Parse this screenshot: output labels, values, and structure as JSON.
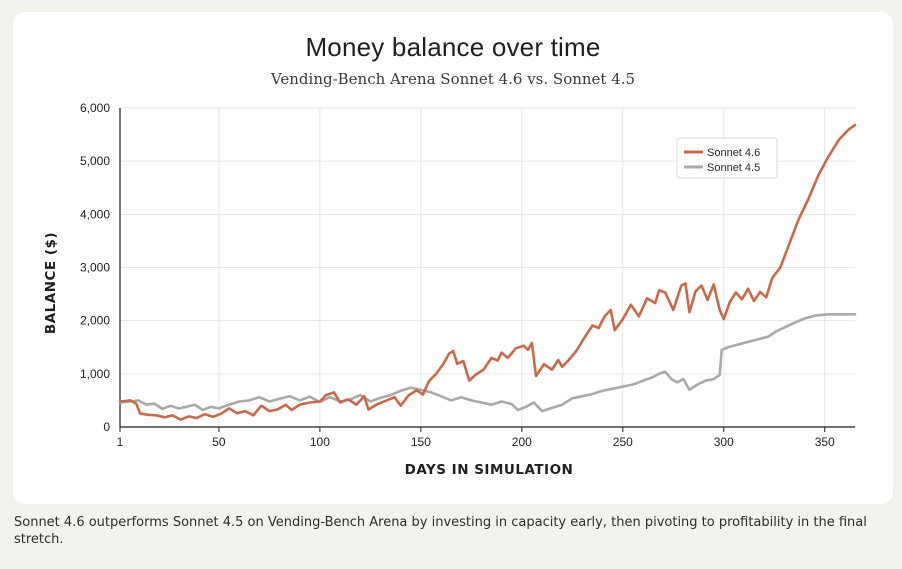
{
  "chart_data": {
    "type": "line",
    "title": "Money balance over time",
    "subtitle": "Vending-Bench Arena Sonnet 4.6 vs. Sonnet 4.5",
    "xlabel": "DAYS IN SIMULATION",
    "ylabel": "BALANCE ($)",
    "xlim": [
      1,
      365
    ],
    "ylim": [
      0,
      6000
    ],
    "xticks": [
      1,
      50,
      100,
      150,
      200,
      250,
      300,
      350
    ],
    "yticks": [
      0,
      1000,
      2000,
      3000,
      4000,
      5000,
      6000
    ],
    "ytick_labels": [
      "0",
      "1,000",
      "2,000",
      "3,000",
      "4,000",
      "5,000",
      "6,000"
    ],
    "grid": true,
    "legend_position": "top-right",
    "series": [
      {
        "name": "Sonnet 4.6",
        "color": "#c9694a",
        "points": [
          [
            1,
            480
          ],
          [
            6,
            500
          ],
          [
            9,
            440
          ],
          [
            11,
            250
          ],
          [
            15,
            230
          ],
          [
            19,
            220
          ],
          [
            23,
            180
          ],
          [
            27,
            220
          ],
          [
            31,
            140
          ],
          [
            35,
            200
          ],
          [
            39,
            170
          ],
          [
            43,
            240
          ],
          [
            47,
            190
          ],
          [
            51,
            250
          ],
          [
            55,
            350
          ],
          [
            59,
            260
          ],
          [
            63,
            300
          ],
          [
            67,
            220
          ],
          [
            71,
            400
          ],
          [
            75,
            300
          ],
          [
            79,
            330
          ],
          [
            83,
            420
          ],
          [
            86,
            320
          ],
          [
            90,
            420
          ],
          [
            95,
            460
          ],
          [
            100,
            480
          ],
          [
            103,
            600
          ],
          [
            107,
            650
          ],
          [
            110,
            460
          ],
          [
            114,
            520
          ],
          [
            118,
            420
          ],
          [
            122,
            580
          ],
          [
            124,
            330
          ],
          [
            128,
            420
          ],
          [
            133,
            500
          ],
          [
            137,
            560
          ],
          [
            140,
            400
          ],
          [
            144,
            600
          ],
          [
            148,
            690
          ],
          [
            151,
            610
          ],
          [
            154,
            860
          ],
          [
            158,
            1020
          ],
          [
            161,
            1180
          ],
          [
            164,
            1380
          ],
          [
            166,
            1430
          ],
          [
            168,
            1190
          ],
          [
            171,
            1240
          ],
          [
            174,
            870
          ],
          [
            177,
            980
          ],
          [
            181,
            1080
          ],
          [
            185,
            1300
          ],
          [
            188,
            1250
          ],
          [
            190,
            1400
          ],
          [
            193,
            1300
          ],
          [
            197,
            1480
          ],
          [
            201,
            1530
          ],
          [
            203,
            1450
          ],
          [
            205,
            1580
          ],
          [
            207,
            960
          ],
          [
            211,
            1180
          ],
          [
            215,
            1080
          ],
          [
            218,
            1260
          ],
          [
            220,
            1130
          ],
          [
            223,
            1250
          ],
          [
            227,
            1430
          ],
          [
            231,
            1680
          ],
          [
            235,
            1910
          ],
          [
            238,
            1860
          ],
          [
            241,
            2080
          ],
          [
            244,
            2200
          ],
          [
            246,
            1820
          ],
          [
            250,
            2030
          ],
          [
            254,
            2300
          ],
          [
            258,
            2080
          ],
          [
            262,
            2420
          ],
          [
            266,
            2330
          ],
          [
            268,
            2570
          ],
          [
            271,
            2530
          ],
          [
            275,
            2200
          ],
          [
            279,
            2660
          ],
          [
            281,
            2700
          ],
          [
            283,
            2160
          ],
          [
            286,
            2550
          ],
          [
            289,
            2660
          ],
          [
            292,
            2390
          ],
          [
            295,
            2680
          ],
          [
            298,
            2200
          ],
          [
            300,
            2030
          ],
          [
            303,
            2350
          ],
          [
            306,
            2530
          ],
          [
            309,
            2400
          ],
          [
            312,
            2600
          ],
          [
            315,
            2370
          ],
          [
            318,
            2540
          ],
          [
            321,
            2440
          ],
          [
            324,
            2800
          ],
          [
            328,
            3000
          ],
          [
            332,
            3400
          ],
          [
            337,
            3900
          ],
          [
            342,
            4300
          ],
          [
            347,
            4750
          ],
          [
            352,
            5100
          ],
          [
            357,
            5400
          ],
          [
            362,
            5600
          ],
          [
            365,
            5680
          ]
        ]
      },
      {
        "name": "Sonnet 4.5",
        "color": "#a9a9a5",
        "points": [
          [
            1,
            460
          ],
          [
            6,
            480
          ],
          [
            10,
            500
          ],
          [
            14,
            420
          ],
          [
            18,
            440
          ],
          [
            22,
            340
          ],
          [
            26,
            400
          ],
          [
            30,
            350
          ],
          [
            34,
            380
          ],
          [
            38,
            420
          ],
          [
            42,
            320
          ],
          [
            46,
            380
          ],
          [
            50,
            350
          ],
          [
            55,
            420
          ],
          [
            60,
            480
          ],
          [
            65,
            500
          ],
          [
            70,
            560
          ],
          [
            75,
            480
          ],
          [
            80,
            530
          ],
          [
            85,
            580
          ],
          [
            90,
            500
          ],
          [
            95,
            570
          ],
          [
            100,
            470
          ],
          [
            105,
            560
          ],
          [
            110,
            480
          ],
          [
            115,
            520
          ],
          [
            120,
            600
          ],
          [
            125,
            480
          ],
          [
            130,
            550
          ],
          [
            135,
            600
          ],
          [
            140,
            680
          ],
          [
            145,
            740
          ],
          [
            150,
            700
          ],
          [
            155,
            650
          ],
          [
            160,
            580
          ],
          [
            165,
            500
          ],
          [
            170,
            560
          ],
          [
            175,
            500
          ],
          [
            180,
            460
          ],
          [
            185,
            420
          ],
          [
            190,
            480
          ],
          [
            195,
            430
          ],
          [
            198,
            320
          ],
          [
            202,
            380
          ],
          [
            206,
            460
          ],
          [
            210,
            300
          ],
          [
            215,
            360
          ],
          [
            220,
            420
          ],
          [
            225,
            540
          ],
          [
            230,
            580
          ],
          [
            235,
            620
          ],
          [
            240,
            680
          ],
          [
            245,
            720
          ],
          [
            250,
            760
          ],
          [
            255,
            800
          ],
          [
            260,
            870
          ],
          [
            265,
            940
          ],
          [
            268,
            1000
          ],
          [
            271,
            1040
          ],
          [
            274,
            900
          ],
          [
            277,
            840
          ],
          [
            280,
            900
          ],
          [
            283,
            700
          ],
          [
            287,
            800
          ],
          [
            291,
            870
          ],
          [
            295,
            900
          ],
          [
            298,
            980
          ],
          [
            299,
            1450
          ],
          [
            302,
            1500
          ],
          [
            306,
            1540
          ],
          [
            310,
            1580
          ],
          [
            314,
            1620
          ],
          [
            318,
            1660
          ],
          [
            322,
            1700
          ],
          [
            326,
            1800
          ],
          [
            330,
            1870
          ],
          [
            335,
            1960
          ],
          [
            340,
            2040
          ],
          [
            346,
            2100
          ],
          [
            352,
            2120
          ],
          [
            358,
            2120
          ],
          [
            365,
            2120
          ]
        ]
      }
    ]
  },
  "caption": "Sonnet 4.6 outperforms Sonnet 4.5 on Vending-Bench Arena by investing in capacity early, then pivoting to profitability in the final stretch."
}
